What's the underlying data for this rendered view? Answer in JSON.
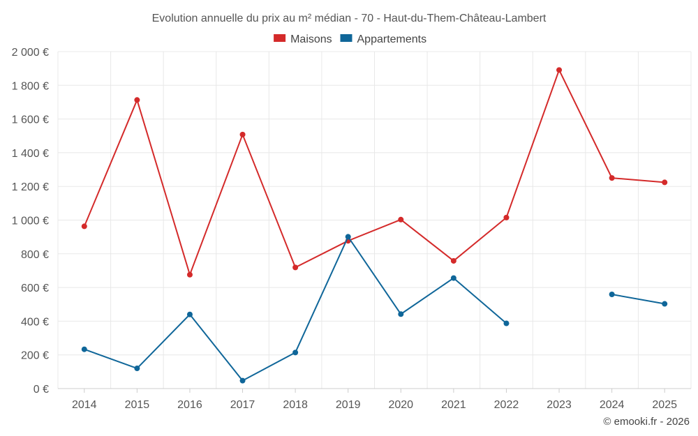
{
  "chart_data": {
    "type": "line",
    "title": "Evolution annuelle du prix au m² médian - 70 - Haut-du-Them-Château-Lambert",
    "categories": [
      "2014",
      "2015",
      "2016",
      "2017",
      "2018",
      "2019",
      "2020",
      "2021",
      "2022",
      "2023",
      "2024",
      "2025"
    ],
    "series": [
      {
        "name": "Maisons",
        "color": "#d42a2a",
        "values": [
          963,
          1713,
          676,
          1508,
          719,
          877,
          1003,
          758,
          1015,
          1891,
          1250,
          1224
        ]
      },
      {
        "name": "Appartements",
        "color": "#0f6699",
        "values": [
          233,
          120,
          440,
          47,
          214,
          901,
          442,
          656,
          387,
          null,
          559,
          503
        ]
      }
    ],
    "y_ticks": [
      0,
      200,
      400,
      600,
      800,
      1000,
      1200,
      1400,
      1600,
      1800,
      2000
    ],
    "y_tick_labels": [
      "0 €",
      "200 €",
      "400 €",
      "600 €",
      "800 €",
      "1 000 €",
      "1 200 €",
      "1 400 €",
      "1 600 €",
      "1 800 €",
      "2 000 €"
    ],
    "ylim": [
      0,
      2000
    ],
    "xlabel": "",
    "ylabel": "",
    "grid": true,
    "legend": "top-center"
  },
  "credit": "© emooki.fr - 2026"
}
